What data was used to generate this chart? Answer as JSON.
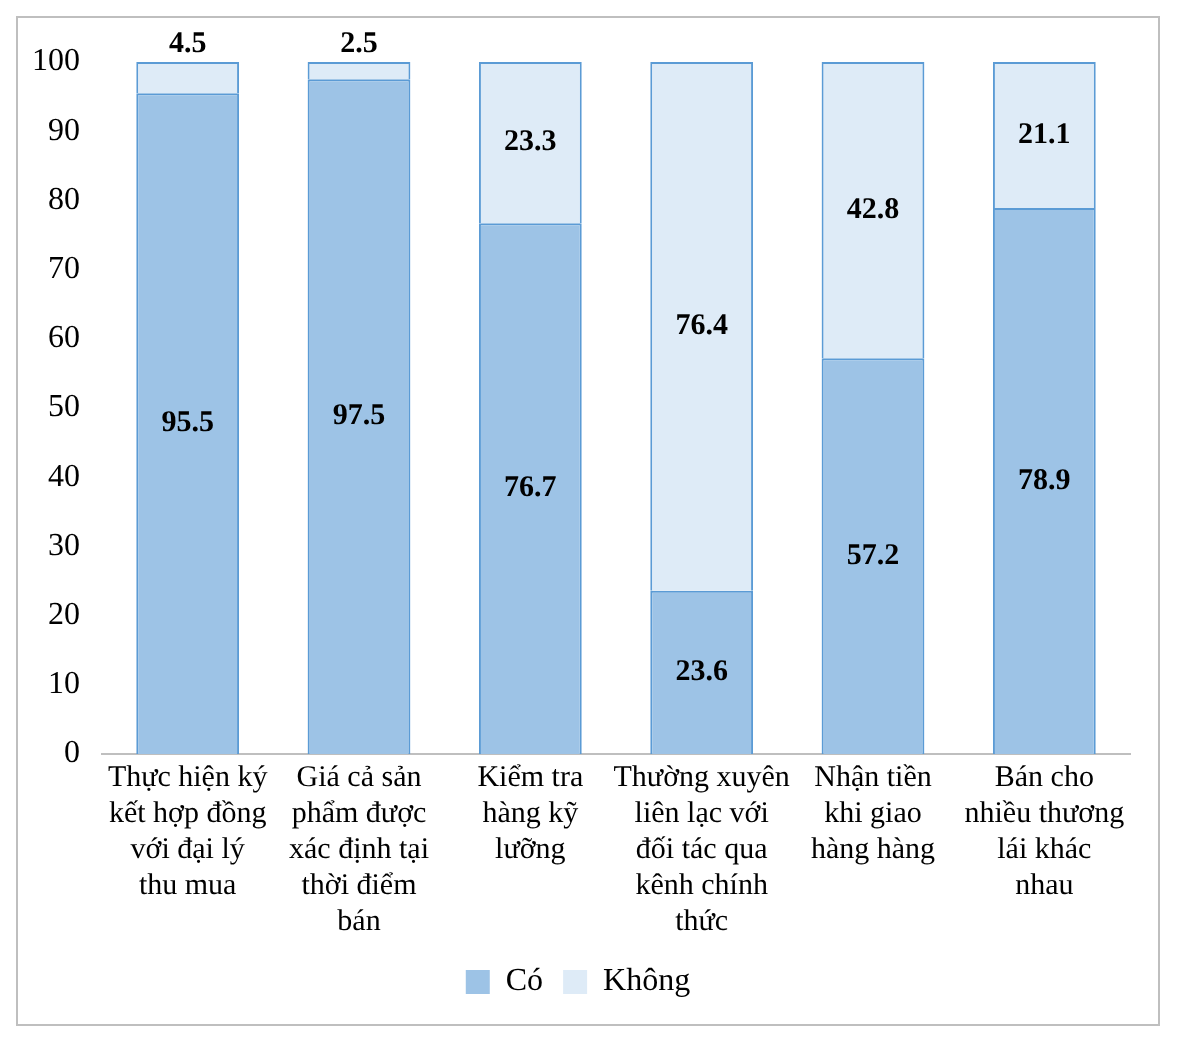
{
  "chart_data": {
    "type": "bar",
    "stacked": true,
    "categories": [
      "Thực hiện ký kết hợp đồng với đại lý thu mua",
      "Giá cả sản phẩm được xác định tại thời điểm bán",
      "Kiểm tra hàng kỹ lưỡng",
      "Thường xuyên liên lạc với đối tác qua kênh chính thức",
      "Nhận tiền khi giao hàng hàng",
      "Bán cho nhiều thương lái khác nhau"
    ],
    "series": [
      {
        "name": "Có",
        "color": "#9dc3e6",
        "values": [
          95.5,
          97.5,
          76.7,
          23.6,
          57.2,
          78.9
        ]
      },
      {
        "name": "Không",
        "color": "#deebf7",
        "values": [
          4.5,
          2.5,
          23.3,
          76.4,
          42.8,
          21.1
        ]
      }
    ],
    "ylim": [
      0,
      100
    ],
    "yticks": [
      0,
      10,
      20,
      30,
      40,
      50,
      60,
      70,
      80,
      90,
      100
    ],
    "grid": false,
    "legend": "bottom",
    "data_labels": true
  }
}
